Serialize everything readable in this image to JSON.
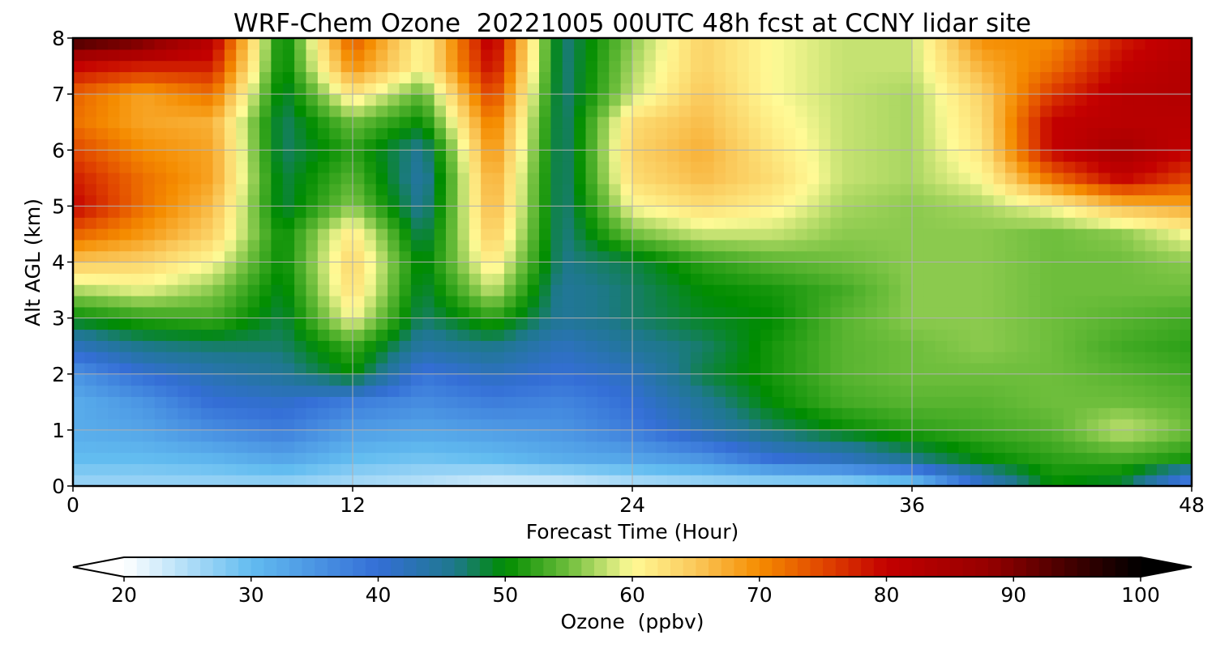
{
  "chart_data": {
    "type": "heatmap",
    "title": "WRF-Chem Ozone  20221005 00UTC 48h fcst at CCNY lidar site",
    "xlabel": "Forecast Time (Hour)",
    "ylabel": "Alt AGL (km)",
    "xlim": [
      0,
      48
    ],
    "ylim": [
      0,
      8
    ],
    "xticks": [
      "0",
      "12",
      "24",
      "36",
      "48"
    ],
    "yticks": [
      "0",
      "1",
      "2",
      "3",
      "4",
      "5",
      "6",
      "7",
      "8"
    ],
    "grid": true,
    "colorbar": {
      "label": "Ozone  (ppbv)",
      "min": 20,
      "max": 100,
      "extend": "both",
      "ticks": [
        "20",
        "30",
        "40",
        "50",
        "60",
        "70",
        "80",
        "90",
        "100"
      ]
    },
    "x": [
      0,
      3,
      6,
      9,
      12,
      15,
      18,
      21,
      24,
      27,
      30,
      33,
      36,
      39,
      42,
      45,
      48
    ],
    "y": [
      0,
      0.5,
      1,
      1.5,
      2,
      2.5,
      3,
      3.5,
      4,
      4.5,
      5,
      5.5,
      6,
      6.5,
      7,
      7.5,
      8
    ],
    "z": [
      [
        26,
        26,
        26,
        26,
        25,
        24,
        22,
        22,
        24,
        25,
        25,
        25,
        27,
        40,
        50,
        48,
        35
      ],
      [
        30,
        30,
        31,
        33,
        30,
        29,
        30,
        32,
        33,
        35,
        40,
        42,
        46,
        50,
        52,
        53,
        51
      ],
      [
        32,
        33,
        36,
        38,
        34,
        33,
        34,
        35,
        38,
        43,
        47,
        50,
        52,
        53,
        54,
        58,
        55
      ],
      [
        32,
        35,
        40,
        41,
        38,
        36,
        38,
        37,
        40,
        45,
        50,
        53,
        54,
        54,
        55,
        55,
        54
      ],
      [
        35,
        40,
        43,
        45,
        50,
        39,
        42,
        40,
        42,
        48,
        51,
        54,
        55,
        55,
        55,
        54,
        53
      ],
      [
        42,
        46,
        47,
        47,
        53,
        44,
        46,
        42,
        45,
        47,
        51,
        54,
        55,
        56,
        55,
        53,
        52
      ],
      [
        50,
        52,
        53,
        48,
        60,
        47,
        52,
        45,
        47,
        49,
        50,
        54,
        56,
        56,
        55,
        54,
        53
      ],
      [
        57,
        59,
        56,
        49,
        63,
        48,
        58,
        45,
        47,
        50,
        51,
        53,
        56,
        56,
        55,
        55,
        55
      ],
      [
        65,
        64,
        60,
        50,
        64,
        49,
        62,
        46,
        48,
        52,
        54,
        55,
        56,
        56,
        55,
        55,
        56
      ],
      [
        73,
        69,
        64,
        50,
        62,
        47,
        65,
        46,
        55,
        58,
        58,
        56,
        56,
        56,
        55,
        56,
        60
      ],
      [
        80,
        72,
        66,
        48,
        56,
        45,
        67,
        46,
        60,
        63,
        61,
        57,
        56,
        57,
        60,
        66,
        68
      ],
      [
        78,
        72,
        68,
        48,
        54,
        44,
        68,
        46,
        63,
        66,
        63,
        58,
        57,
        60,
        72,
        80,
        75
      ],
      [
        75,
        70,
        68,
        47,
        52,
        45,
        70,
        46,
        64,
        67,
        62,
        58,
        57,
        62,
        80,
        85,
        80
      ],
      [
        72,
        68,
        67,
        47,
        55,
        50,
        72,
        46,
        63,
        66,
        61,
        58,
        57,
        63,
        80,
        82,
        82
      ],
      [
        73,
        68,
        72,
        48,
        62,
        54,
        76,
        46,
        58,
        65,
        60,
        58,
        57,
        64,
        76,
        82,
        83
      ],
      [
        80,
        78,
        78,
        49,
        70,
        60,
        80,
        46,
        57,
        64,
        60,
        58,
        58,
        67,
        72,
        80,
        83
      ],
      [
        96,
        92,
        82,
        49,
        74,
        60,
        82,
        46,
        56,
        64,
        60,
        58,
        58,
        70,
        70,
        78,
        82
      ]
    ]
  }
}
